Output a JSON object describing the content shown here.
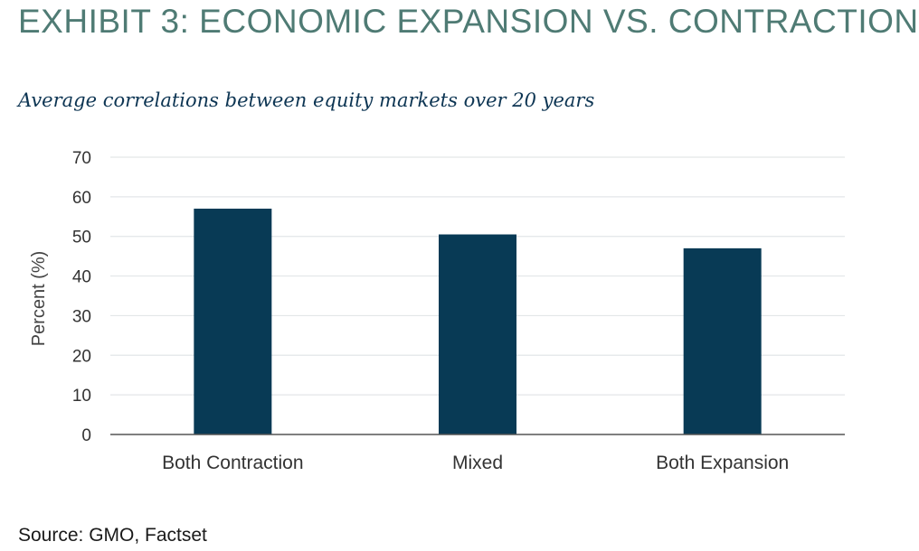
{
  "header": {
    "title": "EXHIBIT 3: ECONOMIC EXPANSION VS. CONTRACTION",
    "subtitle": "Average correlations between equity markets over 20 years"
  },
  "footer": {
    "source": "Source: GMO, Factset"
  },
  "colors": {
    "title": "#4f7b74",
    "subtitle": "#0d3553",
    "bar": "#083a55",
    "grid": "#e3e6e8",
    "axis": "#555555",
    "tick_text": "#333333"
  },
  "chart_data": {
    "type": "bar",
    "title": "Average correlations between equity markets over 20 years",
    "categories": [
      "Both Contraction",
      "Mixed",
      "Both Expansion"
    ],
    "values": [
      57,
      50.5,
      47
    ],
    "xlabel": "",
    "ylabel": "Percent (%)",
    "ylim": [
      0,
      70
    ],
    "yticks": [
      0,
      10,
      20,
      30,
      40,
      50,
      60,
      70
    ],
    "grid": true,
    "legend": "none"
  }
}
